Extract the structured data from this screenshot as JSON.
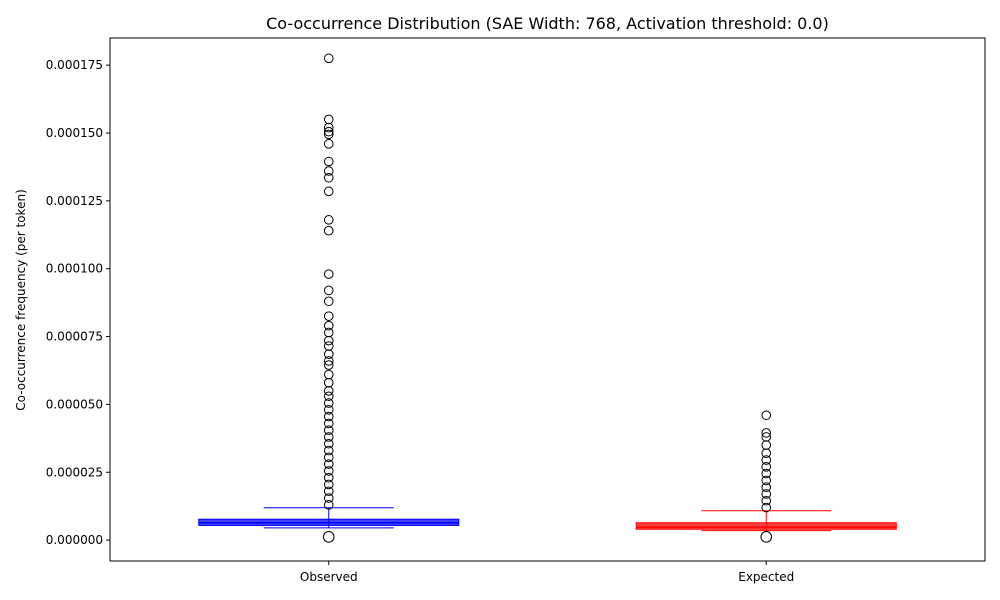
{
  "chart_data": {
    "type": "boxplot",
    "title": "Co-occurrence Distribution (SAE Width: 768, Activation threshold: 0.0)",
    "xlabel": "",
    "ylabel": "Co-occurrence frequency (per token)",
    "ylim": [
      -7.7e-06,
      0.000185
    ],
    "yticks": [
      0.0,
      2.5e-05,
      5e-05,
      7.5e-05,
      0.0001,
      0.000125,
      0.00015,
      0.000175
    ],
    "ytick_labels": [
      "0.000000",
      "0.000025",
      "0.000050",
      "0.000075",
      "0.000100",
      "0.000125",
      "0.000150",
      "0.000175"
    ],
    "grid": false,
    "series": [
      {
        "name": "Observed",
        "color": "#0000ff",
        "q1": 5.4e-06,
        "median": 6.4e-06,
        "q3": 7.7e-06,
        "whisker_low": 4.5e-06,
        "whisker_high": 1.19e-05,
        "low_outlier": 1.2e-06,
        "outliers": [
          0.0001775,
          0.000155,
          0.000152,
          0.0001505,
          0.0001495,
          0.000146,
          0.0001395,
          0.000136,
          0.0001335,
          0.0001285,
          0.000118,
          0.000114,
          9.8e-05,
          9.2e-05,
          8.8e-05,
          8.25e-05,
          7.9e-05,
          7.65e-05,
          7.35e-05,
          7.15e-05,
          6.85e-05,
          6.6e-05,
          6.45e-05,
          6.1e-05,
          5.8e-05,
          5.5e-05,
          5.3e-05,
          5.05e-05,
          4.8e-05,
          4.55e-05,
          4.3e-05,
          4.05e-05,
          3.8e-05,
          3.55e-05,
          3.3e-05,
          3.05e-05,
          2.8e-05,
          2.55e-05,
          2.3e-05,
          2.05e-05,
          1.8e-05,
          1.55e-05,
          1.3e-05
        ]
      },
      {
        "name": "Expected",
        "color": "#ff0000",
        "q1": 4e-06,
        "median": 4.8e-06,
        "q3": 6.4e-06,
        "whisker_low": 3.5e-06,
        "whisker_high": 1.08e-05,
        "low_outlier": 1.2e-06,
        "outliers": [
          4.6e-05,
          3.95e-05,
          3.8e-05,
          3.5e-05,
          3.2e-05,
          2.95e-05,
          2.7e-05,
          2.45e-05,
          2.2e-05,
          1.95e-05,
          1.7e-05,
          1.45e-05,
          1.2e-05
        ]
      }
    ]
  }
}
